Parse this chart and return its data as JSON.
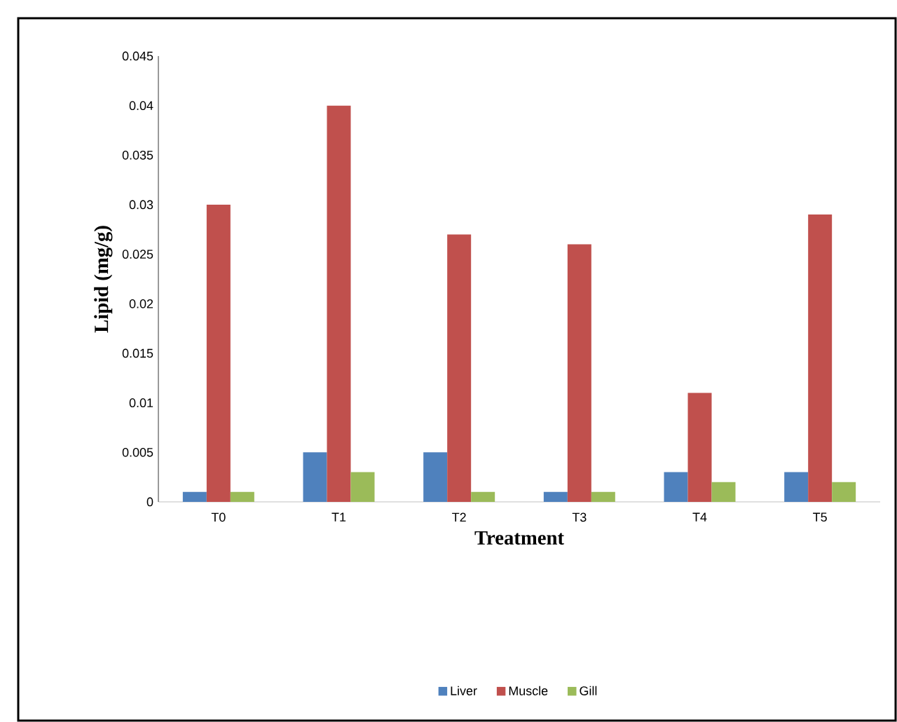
{
  "chart_data": {
    "type": "bar",
    "xlabel": "Treatment",
    "ylabel": "Lipid (mg/g)",
    "categories": [
      "T0",
      "T1",
      "T2",
      "T3",
      "T4",
      "T5"
    ],
    "series": [
      {
        "name": "Liver",
        "color": "#4f81bd",
        "values": [
          0.001,
          0.005,
          0.005,
          0.001,
          0.003,
          0.003
        ]
      },
      {
        "name": "Muscle",
        "color": "#c0504d",
        "values": [
          0.03,
          0.04,
          0.027,
          0.026,
          0.011,
          0.029
        ]
      },
      {
        "name": "Gill",
        "color": "#9bbb59",
        "values": [
          0.001,
          0.003,
          0.001,
          0.001,
          0.002,
          0.002
        ]
      }
    ],
    "ylim": [
      0,
      0.045
    ],
    "yticks": [
      0,
      0.005,
      0.01,
      0.015,
      0.02,
      0.025,
      0.03,
      0.035,
      0.04,
      0.045
    ],
    "grid": false,
    "legend": "bottom"
  }
}
